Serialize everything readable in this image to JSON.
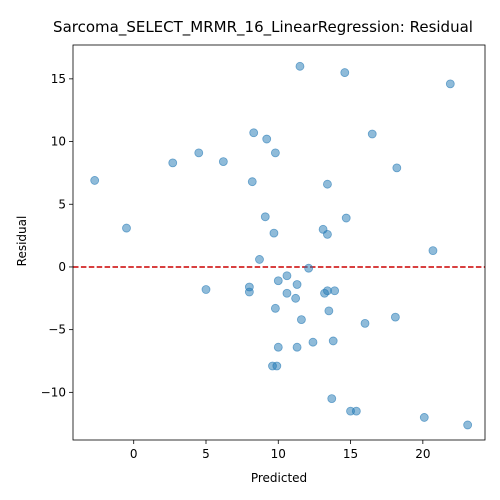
{
  "chart_data": {
    "type": "scatter",
    "title": "Sarcoma_SELECT_MRMR_16_LinearRegression: Residual",
    "xlabel": "Predicted",
    "ylabel": "Residual",
    "xlim": [
      -4.2,
      24.3
    ],
    "ylim": [
      -13.8,
      17.7
    ],
    "xticks": [
      0,
      5,
      10,
      15,
      20
    ],
    "xtick_labels": [
      "0",
      "5",
      "10",
      "15",
      "20"
    ],
    "yticks": [
      -10,
      -5,
      0,
      5,
      10,
      15
    ],
    "ytick_labels": [
      "−10",
      "−5",
      "0",
      "5",
      "10",
      "15"
    ],
    "reference_line": {
      "y": 0,
      "color": "#cc0000",
      "style": "dashed"
    },
    "point_color": "#1f77b4",
    "point_alpha": 0.5,
    "grid": false,
    "series": [
      {
        "points": [
          [
            11.5,
            16.0
          ],
          [
            14.6,
            15.5
          ],
          [
            21.9,
            14.6
          ],
          [
            8.3,
            10.7
          ],
          [
            9.2,
            10.2
          ],
          [
            16.5,
            10.6
          ],
          [
            4.5,
            9.1
          ],
          [
            9.8,
            9.1
          ],
          [
            2.7,
            8.3
          ],
          [
            6.2,
            8.4
          ],
          [
            18.2,
            7.9
          ],
          [
            -2.7,
            6.9
          ],
          [
            8.2,
            6.8
          ],
          [
            13.4,
            6.6
          ],
          [
            9.1,
            4.0
          ],
          [
            14.7,
            3.9
          ],
          [
            -0.5,
            3.1
          ],
          [
            13.1,
            3.0
          ],
          [
            9.7,
            2.7
          ],
          [
            13.4,
            2.6
          ],
          [
            20.7,
            1.3
          ],
          [
            8.7,
            0.6
          ],
          [
            12.1,
            -0.1
          ],
          [
            10.6,
            -0.7
          ],
          [
            10.0,
            -1.1
          ],
          [
            11.3,
            -1.4
          ],
          [
            8.0,
            -1.6
          ],
          [
            5.0,
            -1.8
          ],
          [
            13.9,
            -1.9
          ],
          [
            13.4,
            -1.9
          ],
          [
            13.2,
            -2.1
          ],
          [
            8.0,
            -2.0
          ],
          [
            10.6,
            -2.1
          ],
          [
            11.2,
            -2.5
          ],
          [
            9.8,
            -3.3
          ],
          [
            13.5,
            -3.5
          ],
          [
            18.1,
            -4.0
          ],
          [
            11.6,
            -4.2
          ],
          [
            16.0,
            -4.5
          ],
          [
            13.8,
            -5.9
          ],
          [
            12.4,
            -6.0
          ],
          [
            10.0,
            -6.4
          ],
          [
            11.3,
            -6.4
          ],
          [
            9.6,
            -7.9
          ],
          [
            9.9,
            -7.9
          ],
          [
            13.7,
            -10.5
          ],
          [
            15.0,
            -11.5
          ],
          [
            15.4,
            -11.5
          ],
          [
            20.1,
            -12.0
          ],
          [
            23.1,
            -12.6
          ]
        ]
      }
    ]
  }
}
